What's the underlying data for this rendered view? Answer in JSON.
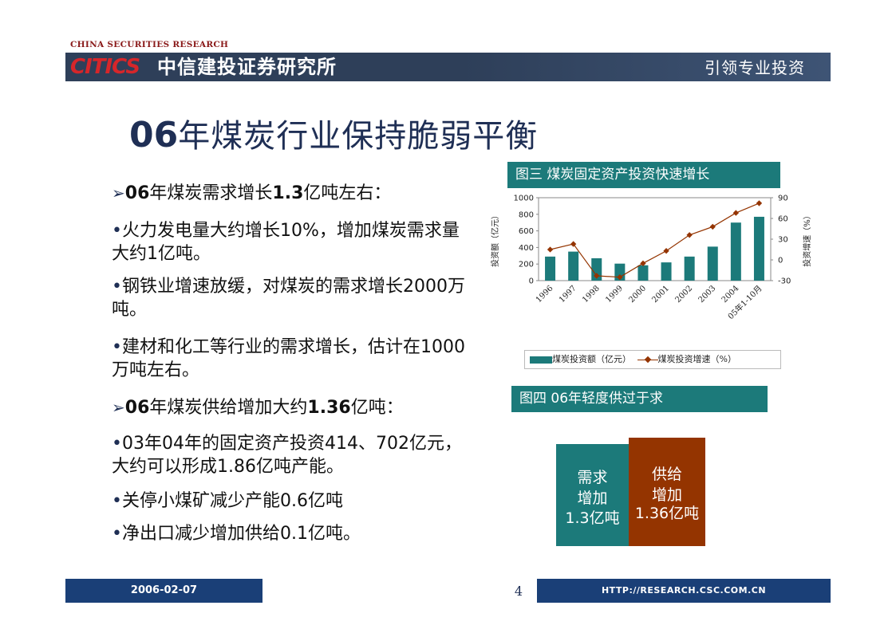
{
  "header": {
    "small_title": "CHINA SECURITIES RESEARCH",
    "logo": "CITICS",
    "company": "中信建投证券研究所",
    "slogan": "引领专业投资"
  },
  "title": {
    "number": "06",
    "text": "年煤炭行业保持脆弱平衡"
  },
  "bullets": [
    {
      "type": "arrow",
      "parts": [
        {
          "t": "06",
          "b": true
        },
        {
          "t": "年煤炭需求增长",
          "b": false
        },
        {
          "t": "1.3",
          "b": true
        },
        {
          "t": "亿吨左右：",
          "b": false
        }
      ]
    },
    {
      "type": "dot",
      "text": "火力发电量大约增长10%，增加煤炭需求量大约1亿吨。"
    },
    {
      "type": "dot",
      "text": "钢铁业增速放缓，对煤炭的需求增长2000万吨。"
    },
    {
      "type": "dot",
      "text": "建材和化工等行业的需求增长，估计在1000万吨左右。"
    },
    {
      "type": "arrow",
      "parts": [
        {
          "t": "06",
          "b": true
        },
        {
          "t": "年煤炭供给增加大约",
          "b": false
        },
        {
          "t": "1.36",
          "b": true
        },
        {
          "t": "亿吨：",
          "b": false
        }
      ]
    },
    {
      "type": "dot",
      "text": "03年04年的固定资产投资414、702亿元，大约可以形成1.86亿吨产能。"
    },
    {
      "type": "dot",
      "text": "关停小煤矿减少产能0.6亿吨"
    },
    {
      "type": "dot",
      "text": "净出口减少增加供给0.1亿吨。"
    }
  ],
  "figure3": {
    "caption": "图三  煤炭固定资产投资快速增长"
  },
  "figure4": {
    "caption": "图四  06年轻度供过于求",
    "demand_lines": [
      "需求",
      "增加",
      "1.3亿吨"
    ],
    "supply_lines": [
      "供给",
      "增加",
      "1.36亿吨"
    ],
    "demand_color": "#1c7a7a",
    "supply_color": "#943400"
  },
  "chart_data": {
    "type": "bar",
    "categories": [
      "1996",
      "1997",
      "1998",
      "1999",
      "2000",
      "2001",
      "2002",
      "2003",
      "2004",
      "05年1-10月"
    ],
    "series": [
      {
        "name": "煤炭投资额（亿元）",
        "type": "bar",
        "axis": "left",
        "color": "#1c7a7a",
        "values": [
          290,
          350,
          270,
          205,
          185,
          220,
          290,
          410,
          700,
          770
        ]
      },
      {
        "name": "煤炭投资增速（%）",
        "type": "line",
        "axis": "right",
        "color": "#943400",
        "values": [
          15,
          23,
          -23,
          -25,
          -5,
          13,
          36,
          48,
          68,
          82
        ]
      }
    ],
    "ylabel_left": "投资额（亿元）",
    "ylabel_right": "投资增速（%）",
    "ylim_left": [
      0,
      1000
    ],
    "ylim_right": [
      -30,
      90
    ],
    "yticks_left": [
      "1000",
      "800",
      "600",
      "400",
      "200",
      "0"
    ],
    "yticks_right": [
      "90",
      "60",
      "30",
      "0",
      "-30"
    ],
    "legend_position": "bottom"
  },
  "footer": {
    "date": "2006-02-07",
    "page": "4",
    "url": "HTTP://RESEARCH.CSC.COM.CN"
  }
}
